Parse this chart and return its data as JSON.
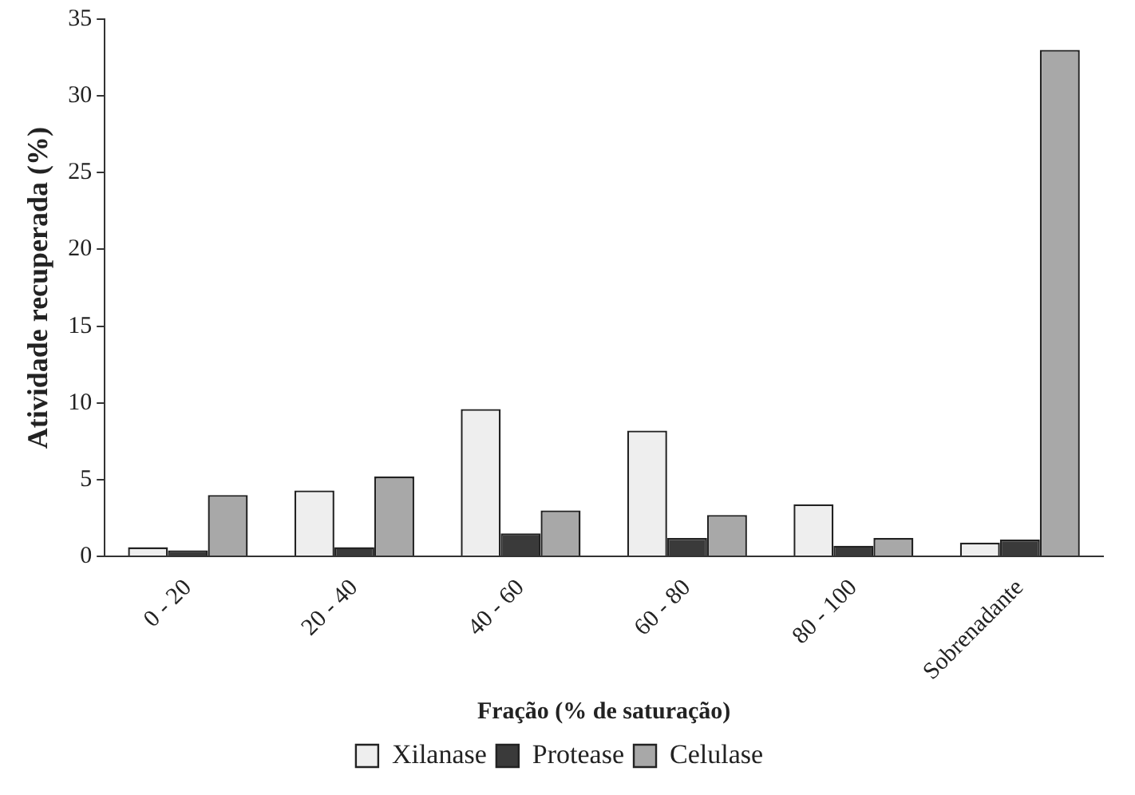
{
  "chart_data": {
    "type": "bar",
    "xlabel": "Fração (% de saturação)",
    "ylabel": "Atividade recuperada (%)",
    "categories": [
      "0 - 20",
      "20 - 40",
      "40 - 60",
      "60 - 80",
      "80 - 100",
      "Sobrenadante"
    ],
    "series": [
      {
        "name": "Xilanase",
        "color": "#eeeeee",
        "values": [
          0.6,
          4.3,
          9.6,
          8.2,
          3.4,
          0.9
        ]
      },
      {
        "name": "Protease",
        "color": "#3a3a3a",
        "values": [
          0.4,
          0.6,
          1.5,
          1.2,
          0.7,
          1.1
        ]
      },
      {
        "name": "Celulase",
        "color": "#a8a8a8",
        "values": [
          4.0,
          5.2,
          3.0,
          2.7,
          1.2,
          33.0
        ]
      }
    ],
    "ylim": [
      0,
      35
    ],
    "yticks": [
      0,
      5,
      10,
      15,
      20,
      25,
      30,
      35
    ],
    "grid": false,
    "legend": "bottom"
  }
}
